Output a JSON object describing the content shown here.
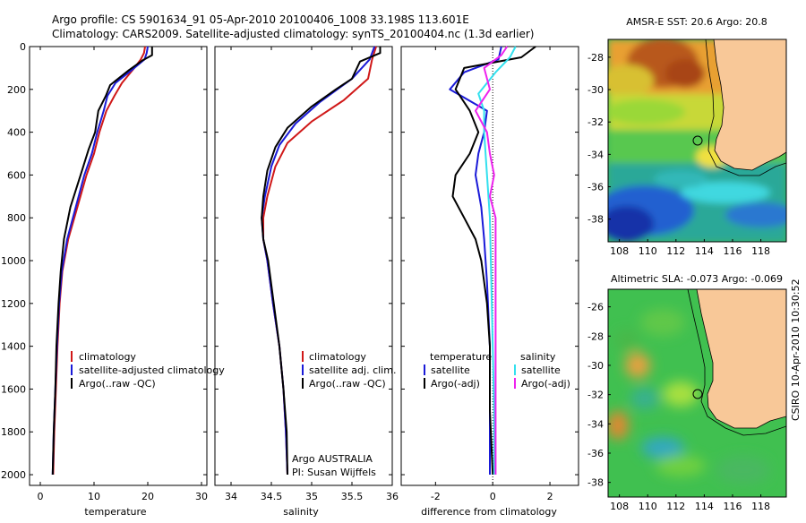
{
  "title_line1": "Argo profile: CS 5901634_91 05-Apr-2010 20100406_1008 33.198S 113.601E",
  "title_line2": "Climatology: CARS2009. Satellite-adjusted climatology: synTS_20100404.nc (1.3d earlier)",
  "side_label": "CSIRO 10-Apr-2010 10:30:52",
  "colors": {
    "climatology": "#d01818",
    "satellite": "#1a1ad8",
    "argo": "#000000",
    "salt_satellite": "#33e0ee",
    "salt_argo": "#ee22ee"
  },
  "chart_data": [
    {
      "type": "line",
      "xlabel": "temperature",
      "xlim": [
        -2,
        31
      ],
      "ylim": [
        2050,
        0
      ],
      "xticks": [
        "0",
        "10",
        "20",
        "30"
      ],
      "yticks": [
        "0",
        "200",
        "400",
        "600",
        "800",
        "1000",
        "1200",
        "1400",
        "1600",
        "1800",
        "2000"
      ],
      "legend": [
        "climatology",
        "satellite-adjusted climatology",
        "Argo(..raw -QC)"
      ],
      "legend_placement": "lower-right",
      "series": [
        {
          "name": "climatology",
          "points": [
            [
              19.5,
              0
            ],
            [
              19.3,
              30
            ],
            [
              18.7,
              60
            ],
            [
              17.5,
              100
            ],
            [
              15.2,
              170
            ],
            [
              13.8,
              230
            ],
            [
              12.3,
              300
            ],
            [
              11.0,
              400
            ],
            [
              10.0,
              500
            ],
            [
              8.6,
              600
            ],
            [
              6.9,
              750
            ],
            [
              5.2,
              900
            ],
            [
              4.1,
              1050
            ],
            [
              3.6,
              1200
            ],
            [
              3.2,
              1400
            ],
            [
              2.9,
              1600
            ],
            [
              2.6,
              1800
            ],
            [
              2.4,
              2000
            ]
          ]
        },
        {
          "name": "satellite-adjusted climatology",
          "points": [
            [
              20.0,
              0
            ],
            [
              19.8,
              30
            ],
            [
              19.4,
              60
            ],
            [
              17.0,
              110
            ],
            [
              14.0,
              170
            ],
            [
              12.5,
              230
            ],
            [
              11.8,
              300
            ],
            [
              10.6,
              400
            ],
            [
              9.6,
              500
            ],
            [
              8.2,
              600
            ],
            [
              6.6,
              750
            ],
            [
              5.0,
              900
            ],
            [
              4.0,
              1050
            ],
            [
              3.5,
              1200
            ],
            [
              3.1,
              1400
            ],
            [
              2.8,
              1600
            ],
            [
              2.5,
              1800
            ],
            [
              2.3,
              2000
            ]
          ]
        },
        {
          "name": "Argo(..raw -QC)",
          "points": [
            [
              20.8,
              0
            ],
            [
              20.8,
              40
            ],
            [
              19.0,
              65
            ],
            [
              16.5,
              110
            ],
            [
              13.0,
              180
            ],
            [
              12.2,
              230
            ],
            [
              10.8,
              300
            ],
            [
              10.2,
              400
            ],
            [
              9.0,
              480
            ],
            [
              7.5,
              600
            ],
            [
              5.6,
              750
            ],
            [
              4.4,
              900
            ],
            [
              3.8,
              1050
            ],
            [
              3.4,
              1200
            ],
            [
              3.0,
              1400
            ],
            [
              2.8,
              1600
            ],
            [
              2.5,
              1800
            ],
            [
              2.3,
              2000
            ]
          ]
        }
      ]
    },
    {
      "type": "line",
      "xlabel": "salinity",
      "xlim": [
        33.8,
        36.0
      ],
      "ylim": [
        2050,
        0
      ],
      "xticks": [
        "34",
        "34.5",
        "35",
        "35.5",
        "36"
      ],
      "legend": [
        "climatology",
        "satellite adj. clim.",
        "Argo(..raw -QC)"
      ],
      "legend_placement": "lower-right",
      "annotation_line1": "Argo AUSTRALIA",
      "annotation_line2": "PI: Susan Wijffels",
      "series": [
        {
          "name": "climatology",
          "points": [
            [
              35.8,
              0
            ],
            [
              35.75,
              60
            ],
            [
              35.7,
              150
            ],
            [
              35.4,
              250
            ],
            [
              35.0,
              350
            ],
            [
              34.7,
              450
            ],
            [
              34.55,
              560
            ],
            [
              34.45,
              700
            ],
            [
              34.4,
              800
            ],
            [
              34.4,
              900
            ],
            [
              34.45,
              1000
            ],
            [
              34.52,
              1200
            ],
            [
              34.6,
              1400
            ],
            [
              34.65,
              1600
            ],
            [
              34.68,
              1800
            ],
            [
              34.7,
              2000
            ]
          ]
        },
        {
          "name": "satellite adj. clim.",
          "points": [
            [
              35.78,
              0
            ],
            [
              35.72,
              60
            ],
            [
              35.5,
              150
            ],
            [
              35.1,
              260
            ],
            [
              34.8,
              360
            ],
            [
              34.6,
              460
            ],
            [
              34.5,
              560
            ],
            [
              34.42,
              700
            ],
            [
              34.38,
              800
            ],
            [
              34.4,
              900
            ],
            [
              34.45,
              1000
            ],
            [
              34.52,
              1200
            ],
            [
              34.6,
              1400
            ],
            [
              34.65,
              1600
            ],
            [
              34.68,
              1800
            ],
            [
              34.7,
              2000
            ]
          ]
        },
        {
          "name": "Argo(..raw -QC)",
          "points": [
            [
              35.85,
              0
            ],
            [
              35.85,
              30
            ],
            [
              35.6,
              70
            ],
            [
              35.5,
              150
            ],
            [
              35.3,
              200
            ],
            [
              35.0,
              280
            ],
            [
              34.7,
              380
            ],
            [
              34.55,
              470
            ],
            [
              34.45,
              580
            ],
            [
              34.4,
              700
            ],
            [
              34.38,
              800
            ],
            [
              34.4,
              900
            ],
            [
              34.46,
              1000
            ],
            [
              34.53,
              1200
            ],
            [
              34.6,
              1400
            ],
            [
              34.65,
              1600
            ],
            [
              34.69,
              1800
            ],
            [
              34.7,
              2000
            ]
          ]
        }
      ]
    },
    {
      "type": "line",
      "xlabel": "difference from climatology",
      "xlim": [
        -3.2,
        3.0
      ],
      "ylim": [
        2050,
        0
      ],
      "xticks": [
        "-2",
        "0",
        "2"
      ],
      "legend": [
        "temperature",
        "satellite",
        "Argo(-adj)",
        "salinity",
        "satellite",
        "Argo(-adj)"
      ],
      "legend_placement": "lower-right",
      "series": [
        {
          "name": "temperature satellite",
          "points": [
            [
              0.3,
              0
            ],
            [
              0.2,
              60
            ],
            [
              -1.0,
              120
            ],
            [
              -1.5,
              200
            ],
            [
              -0.2,
              300
            ],
            [
              -0.3,
              400
            ],
            [
              -0.5,
              500
            ],
            [
              -0.6,
              600
            ],
            [
              -0.4,
              750
            ],
            [
              -0.3,
              900
            ],
            [
              -0.2,
              1100
            ],
            [
              -0.1,
              1400
            ],
            [
              -0.1,
              1700
            ],
            [
              -0.1,
              2000
            ]
          ]
        },
        {
          "name": "temperature Argo(-adj)",
          "points": [
            [
              1.5,
              0
            ],
            [
              1.0,
              50
            ],
            [
              -1.0,
              100
            ],
            [
              -1.3,
              200
            ],
            [
              -0.8,
              300
            ],
            [
              -0.5,
              400
            ],
            [
              -0.8,
              500
            ],
            [
              -1.3,
              600
            ],
            [
              -1.4,
              700
            ],
            [
              -1.0,
              800
            ],
            [
              -0.6,
              900
            ],
            [
              -0.4,
              1000
            ],
            [
              -0.2,
              1200
            ],
            [
              -0.1,
              1400
            ],
            [
              -0.1,
              1700
            ],
            [
              0.0,
              2000
            ]
          ]
        },
        {
          "name": "salinity satellite",
          "points": [
            [
              0.8,
              0
            ],
            [
              0.6,
              50
            ],
            [
              0.1,
              120
            ],
            [
              -0.5,
              220
            ],
            [
              -0.3,
              300
            ],
            [
              -0.3,
              400
            ],
            [
              -0.2,
              600
            ],
            [
              -0.1,
              800
            ],
            [
              -0.05,
              1100
            ],
            [
              0.0,
              1400
            ],
            [
              0.05,
              1700
            ],
            [
              0.05,
              2000
            ]
          ]
        },
        {
          "name": "salinity Argo(-adj)",
          "points": [
            [
              0.5,
              0
            ],
            [
              0.3,
              40
            ],
            [
              -0.3,
              100
            ],
            [
              -0.1,
              200
            ],
            [
              -0.6,
              300
            ],
            [
              -0.2,
              400
            ],
            [
              -0.1,
              500
            ],
            [
              0.05,
              600
            ],
            [
              -0.1,
              700
            ],
            [
              0.1,
              800
            ],
            [
              0.1,
              1000
            ],
            [
              0.1,
              1200
            ],
            [
              0.1,
              1500
            ],
            [
              0.1,
              2000
            ]
          ]
        }
      ]
    },
    {
      "type": "heatmap",
      "title": "AMSR-E SST: 20.6 Argo: 20.8",
      "xticks": [
        "108",
        "110",
        "112",
        "114",
        "116",
        "118"
      ],
      "yticks": [
        "-28",
        "-30",
        "-32",
        "-34",
        "-36",
        "-38"
      ],
      "xlim": [
        107.2,
        119.8
      ],
      "ylim": [
        -39.4,
        -26.9
      ],
      "argo_position": [
        113.6,
        -33.2
      ]
    },
    {
      "type": "heatmap",
      "title": "Altimetric SLA: -0.073 Argo: -0.069",
      "xticks": [
        "108",
        "110",
        "112",
        "114",
        "116",
        "118"
      ],
      "yticks": [
        "-26",
        "-28",
        "-30",
        "-32",
        "-34",
        "-36",
        "-38"
      ],
      "xlim": [
        107.2,
        119.8
      ],
      "ylim": [
        -39.0,
        -24.8
      ],
      "argo_position": [
        113.6,
        -33.2
      ]
    }
  ]
}
